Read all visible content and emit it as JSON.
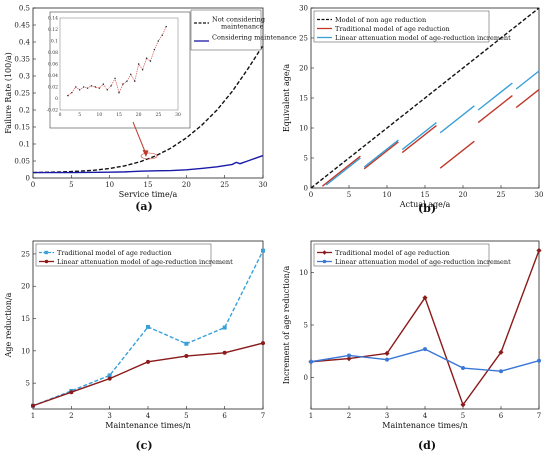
{
  "chart_data": [
    {
      "id": "a",
      "type": "line",
      "caption": "(a)",
      "xlabel": "Service time/a",
      "ylabel": "Failure Rate (100/a)",
      "xlim": [
        0,
        30
      ],
      "ylim": [
        0,
        0.5
      ],
      "xticks": [
        0,
        5,
        10,
        15,
        20,
        25,
        30
      ],
      "yticks": [
        0,
        0.05,
        0.1,
        0.15,
        0.2,
        0.25,
        0.3,
        0.35,
        0.4,
        0.45,
        0.5
      ],
      "legend_position": "top-right",
      "series": [
        {
          "name": "Not considering maintenance",
          "color": "#111111",
          "dash": "dash",
          "x": [
            0,
            2,
            4,
            6,
            8,
            10,
            12,
            14,
            16,
            18,
            20,
            22,
            24,
            26,
            28,
            30
          ],
          "y": [
            0.016,
            0.017,
            0.018,
            0.02,
            0.023,
            0.028,
            0.036,
            0.048,
            0.065,
            0.088,
            0.118,
            0.155,
            0.2,
            0.255,
            0.32,
            0.39
          ]
        },
        {
          "name": "Considering maintenance",
          "color": "#1a1aa8",
          "dash": "solid",
          "x": [
            0,
            5,
            10,
            12,
            14,
            16,
            18,
            20,
            22,
            24,
            26,
            26.5,
            27,
            28,
            30
          ],
          "y": [
            0.016,
            0.016,
            0.017,
            0.018,
            0.02,
            0.021,
            0.022,
            0.024,
            0.028,
            0.033,
            0.04,
            0.046,
            0.042,
            0.05,
            0.066
          ]
        }
      ],
      "inset": {
        "xlim": [
          0,
          30
        ],
        "ylim": [
          -0.02,
          0.14
        ],
        "xticks": [
          0,
          5,
          10,
          15,
          20,
          25,
          30
        ],
        "yticks": [
          -0.02,
          0,
          0.02,
          0.04,
          0.06,
          0.08,
          0.1,
          0.12,
          0.14
        ],
        "x": [
          2,
          3,
          4,
          5,
          6,
          7,
          8,
          9,
          10,
          11,
          12,
          13,
          14,
          15,
          16,
          17,
          18,
          19,
          20,
          21,
          22,
          23,
          24,
          25,
          26,
          27
        ],
        "y": [
          0.005,
          0.01,
          0.02,
          0.015,
          0.02,
          0.018,
          0.022,
          0.02,
          0.018,
          0.025,
          0.015,
          0.022,
          0.035,
          0.01,
          0.025,
          0.03,
          0.042,
          0.03,
          0.06,
          0.05,
          0.07,
          0.065,
          0.085,
          0.1,
          0.11,
          0.125
        ]
      }
    },
    {
      "id": "b",
      "type": "line",
      "caption": "(b)",
      "xlabel": "Actual age/a",
      "ylabel": "Equivalent age/a",
      "xlim": [
        0,
        30
      ],
      "ylim": [
        0,
        30
      ],
      "xticks": [
        0,
        5,
        10,
        15,
        20,
        25,
        30
      ],
      "yticks": [
        0,
        5,
        10,
        15,
        20,
        25,
        30
      ],
      "legend_position": "top-left",
      "series": [
        {
          "name": "Model of non age reduction",
          "color": "#111111",
          "dash": "dash",
          "segments": [
            [
              [
                0,
                0
              ],
              [
                30,
                30
              ]
            ]
          ]
        },
        {
          "name": "Traditional model of age reduction",
          "color": "#c0392b",
          "dash": "solid",
          "segments": [
            [
              [
                1.5,
                0.3
              ],
              [
                6.5,
                5.3
              ]
            ],
            [
              [
                7,
                3.2
              ],
              [
                11.5,
                7.7
              ]
            ],
            [
              [
                12,
                5.9
              ],
              [
                16.5,
                10.4
              ]
            ],
            [
              [
                17,
                3.3
              ],
              [
                21.5,
                7.8
              ]
            ],
            [
              [
                22,
                10.9
              ],
              [
                26.5,
                15.4
              ]
            ],
            [
              [
                27,
                13.4
              ],
              [
                30,
                16.4
              ]
            ]
          ]
        },
        {
          "name": "Linear attenuation model of age-reduction increment",
          "color": "#3aa0d8",
          "dash": "solid",
          "segments": [
            [
              [
                2,
                0.5
              ],
              [
                6.5,
                5
              ]
            ],
            [
              [
                7,
                3.5
              ],
              [
                11.5,
                8
              ]
            ],
            [
              [
                12,
                6.4
              ],
              [
                16.5,
                10.9
              ]
            ],
            [
              [
                17,
                9.2
              ],
              [
                21.5,
                13.7
              ]
            ],
            [
              [
                22,
                13
              ],
              [
                26.5,
                17.5
              ]
            ],
            [
              [
                27,
                16.5
              ],
              [
                30,
                19.5
              ]
            ]
          ]
        }
      ]
    },
    {
      "id": "c",
      "type": "line",
      "caption": "(c)",
      "xlabel": "Maintenance times/n",
      "ylabel": "Age reduction/a",
      "xlim": [
        1,
        7
      ],
      "ylim": [
        1,
        27
      ],
      "xticks": [
        1,
        2,
        3,
        4,
        5,
        6,
        7
      ],
      "yticks": [
        5,
        10,
        15,
        20,
        25
      ],
      "legend_position": "top-left",
      "series": [
        {
          "name": "Traditional model of age reduction",
          "color": "#3aa0d8",
          "dash": "dash",
          "marker": "square",
          "x": [
            1,
            2,
            3,
            4,
            5,
            6,
            7
          ],
          "y": [
            1.5,
            3.8,
            6.2,
            13.7,
            11.1,
            13.6,
            25.5
          ]
        },
        {
          "name": "Linear attenuation model of age-reduction increment",
          "color": "#8b1a1a",
          "dash": "solid",
          "marker": "circle",
          "x": [
            1,
            2,
            3,
            4,
            5,
            6,
            7
          ],
          "y": [
            1.5,
            3.6,
            5.7,
            8.3,
            9.2,
            9.7,
            11.2
          ]
        }
      ]
    },
    {
      "id": "d",
      "type": "line",
      "caption": "(d)",
      "xlabel": "Maintenance times/n",
      "ylabel": "Increment of age reduction/a",
      "xlim": [
        1,
        7
      ],
      "ylim": [
        -3,
        13
      ],
      "xticks": [
        1,
        2,
        3,
        4,
        5,
        6,
        7
      ],
      "yticks": [
        0,
        5,
        10
      ],
      "legend_position": "top-left",
      "series": [
        {
          "name": "Traditional model of age reduction",
          "color": "#8b1a1a",
          "dash": "solid",
          "marker": "diamond",
          "x": [
            1,
            2,
            3,
            4,
            5,
            6,
            7
          ],
          "y": [
            1.5,
            1.8,
            2.3,
            7.6,
            -2.6,
            2.4,
            12.1
          ]
        },
        {
          "name": "Linear attenuation model of age-reduction increment",
          "color": "#3a78d8",
          "dash": "solid",
          "marker": "circle",
          "x": [
            1,
            2,
            3,
            4,
            5,
            6,
            7
          ],
          "y": [
            1.5,
            2.1,
            1.7,
            2.7,
            0.9,
            0.6,
            1.6
          ]
        }
      ]
    }
  ]
}
